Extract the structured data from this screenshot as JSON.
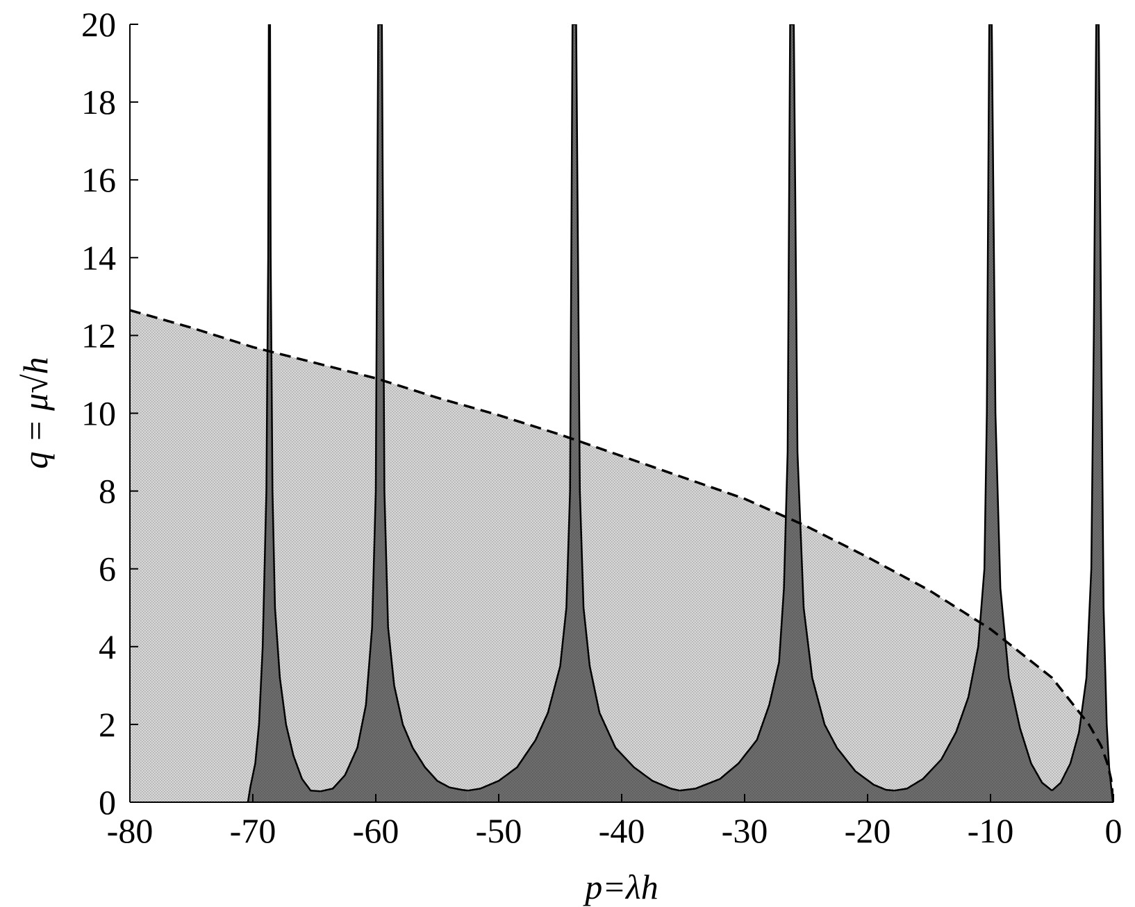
{
  "chart_data": {
    "type": "area",
    "xlabel": "p=λh",
    "ylabel": "q = μ√h",
    "xlim": [
      -80,
      0
    ],
    "ylim": [
      0,
      20
    ],
    "xticks": [
      {
        "value": -80,
        "label": "-80"
      },
      {
        "value": -70,
        "label": "-70"
      },
      {
        "value": -60,
        "label": "-60"
      },
      {
        "value": -50,
        "label": "-50"
      },
      {
        "value": -40,
        "label": "-40"
      },
      {
        "value": -30,
        "label": "-30"
      },
      {
        "value": -20,
        "label": "-20"
      },
      {
        "value": -10,
        "label": "-10"
      },
      {
        "value": 0,
        "label": "0"
      }
    ],
    "yticks": [
      {
        "value": 0,
        "label": "0"
      },
      {
        "value": 2,
        "label": "2"
      },
      {
        "value": 4,
        "label": "4"
      },
      {
        "value": 6,
        "label": "6"
      },
      {
        "value": 8,
        "label": "8"
      },
      {
        "value": 10,
        "label": "10"
      },
      {
        "value": 12,
        "label": "12"
      },
      {
        "value": 14,
        "label": "14"
      },
      {
        "value": 16,
        "label": "16"
      },
      {
        "value": 18,
        "label": "18"
      },
      {
        "value": 20,
        "label": "20"
      }
    ],
    "grid": false,
    "legend": "none",
    "colors": {
      "dark_region": "#6a6a6a",
      "light_region": "#d8d8d8",
      "stipple": "#a9a9a9",
      "boundary": "#000000",
      "axes": "#000000"
    },
    "dashed_curve": {
      "style": "dashed",
      "points": [
        [
          -80,
          12.65
        ],
        [
          -75,
          12.2
        ],
        [
          -70,
          11.7
        ],
        [
          -65,
          11.3
        ],
        [
          -60,
          10.9
        ],
        [
          -55,
          10.4
        ],
        [
          -50,
          9.95
        ],
        [
          -45,
          9.45
        ],
        [
          -40,
          8.9
        ],
        [
          -35,
          8.35
        ],
        [
          -30,
          7.8
        ],
        [
          -25,
          7.1
        ],
        [
          -20,
          6.3
        ],
        [
          -15,
          5.45
        ],
        [
          -10,
          4.45
        ],
        [
          -5,
          3.2
        ],
        [
          -2,
          2.0
        ],
        [
          -1,
          1.45
        ],
        [
          -0.5,
          1.0
        ],
        [
          -0.2,
          0.6
        ],
        [
          0,
          0
        ]
      ]
    },
    "stability_lobes": [
      {
        "x": [
          -70.4,
          -70.2,
          -69.8,
          -69.5,
          -69.2,
          -68.9,
          -68.75,
          -68.7,
          -68.7,
          -68.6,
          -68.55,
          -68.4,
          -68.2,
          -67.8,
          -67.3,
          -66.7,
          -66.0,
          -65.3,
          -64.5
        ],
        "lower": [
          0.0,
          0.4,
          1.0,
          2.0,
          4.0,
          8.0,
          14.0,
          20.0,
          20.0,
          20.0,
          14.0,
          8.0,
          5.0,
          3.2,
          2.0,
          1.2,
          0.6,
          0.3,
          0.28
        ]
      },
      {
        "x": [
          -64.5,
          -63.5,
          -62.5,
          -61.5,
          -60.8,
          -60.3,
          -60.0,
          -59.8,
          -59.8,
          -59.5,
          -59.3,
          -59.0,
          -58.5,
          -57.8,
          -57.0,
          -56.0,
          -55.0,
          -54.0,
          -53.0,
          -52.5
        ],
        "lower": [
          0.28,
          0.35,
          0.7,
          1.4,
          2.5,
          4.5,
          8.0,
          20.0,
          20.0,
          20.0,
          8.0,
          4.5,
          3.0,
          2.0,
          1.4,
          0.9,
          0.55,
          0.38,
          0.32,
          0.3
        ]
      },
      {
        "x": [
          -52.5,
          -51.5,
          -50.0,
          -48.5,
          -47.0,
          -46.0,
          -45.0,
          -44.5,
          -44.2,
          -44.0,
          -43.7,
          -43.4,
          -43.1,
          -42.6,
          -41.8,
          -40.5,
          -39.0,
          -37.5,
          -36.0,
          -35.3
        ],
        "lower": [
          0.3,
          0.35,
          0.55,
          0.9,
          1.6,
          2.3,
          3.5,
          5.0,
          8.0,
          20.0,
          20.0,
          8.0,
          5.0,
          3.5,
          2.3,
          1.4,
          0.9,
          0.55,
          0.35,
          0.3
        ]
      },
      {
        "x": [
          -35.3,
          -34.0,
          -32.0,
          -30.5,
          -29.0,
          -28.0,
          -27.2,
          -26.8,
          -26.5,
          -26.3,
          -26.0,
          -25.7,
          -25.2,
          -24.5,
          -23.5,
          -22.5,
          -21.0,
          -19.5,
          -18.5,
          -17.8
        ],
        "lower": [
          0.3,
          0.35,
          0.6,
          1.0,
          1.6,
          2.5,
          3.6,
          5.5,
          9.0,
          20.0,
          20.0,
          9.0,
          5.0,
          3.2,
          2.0,
          1.4,
          0.8,
          0.45,
          0.32,
          0.3
        ]
      },
      {
        "x": [
          -17.8,
          -16.8,
          -15.5,
          -14.0,
          -12.8,
          -11.8,
          -11.0,
          -10.5,
          -10.3,
          -10.1,
          -9.9,
          -9.6,
          -9.2,
          -8.5,
          -7.6,
          -6.7,
          -5.8,
          -5.0
        ],
        "lower": [
          0.3,
          0.35,
          0.6,
          1.1,
          1.8,
          2.7,
          4.0,
          6.0,
          10.0,
          20.0,
          20.0,
          10.0,
          5.5,
          3.2,
          1.9,
          1.0,
          0.5,
          0.3
        ]
      },
      {
        "x": [
          -5.0,
          -4.3,
          -3.5,
          -2.8,
          -2.2,
          -1.8,
          -1.6,
          -1.4,
          -1.2,
          -1.0,
          -0.8,
          -0.55,
          -0.35,
          -0.15,
          -0.05
        ],
        "lower": [
          0.3,
          0.5,
          1.0,
          1.8,
          3.2,
          6.0,
          12.0,
          20.0,
          20.0,
          12.0,
          5.0,
          2.0,
          0.9,
          0.3,
          0.0
        ]
      }
    ]
  }
}
